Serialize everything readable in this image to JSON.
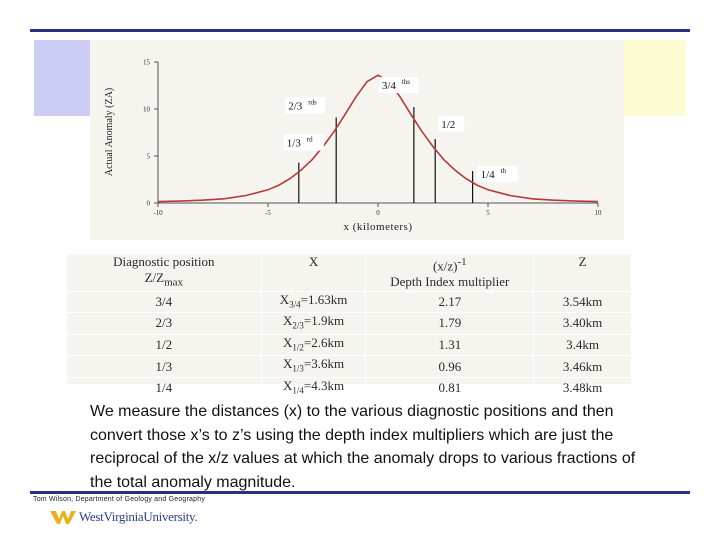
{
  "chart_data": {
    "type": "line",
    "xlabel": "x (kilometers)",
    "ylabel": "Actual Anomaly (ZA)",
    "x_ticks": [
      "-10",
      "-5",
      "0",
      "5",
      "10"
    ],
    "y_ticks": [
      "0",
      "5",
      "10",
      "15"
    ],
    "xlim": [
      -10,
      10
    ],
    "ylim": [
      0,
      15
    ],
    "curve": {
      "x": [
        -10,
        -9,
        -8,
        -7,
        -6,
        -5,
        -4.5,
        -4,
        -3.5,
        -3,
        -2.5,
        -2,
        -1.5,
        -1,
        -0.5,
        0,
        0.5,
        1,
        1.5,
        2,
        2.5,
        3,
        3.5,
        4,
        4.5,
        5,
        6,
        7,
        8,
        9,
        10
      ],
      "y": [
        0.15,
        0.2,
        0.3,
        0.45,
        0.8,
        1.4,
        1.9,
        2.6,
        3.5,
        4.6,
        6.0,
        7.6,
        9.4,
        11.3,
        12.9,
        13.6,
        12.9,
        11.3,
        9.4,
        7.6,
        6.0,
        4.6,
        3.5,
        2.6,
        1.9,
        1.4,
        0.8,
        0.45,
        0.3,
        0.2,
        0.15
      ]
    },
    "markers": [
      {
        "x": -3.6,
        "y": 4.3,
        "label_base": "1/3",
        "label_sup": "rd"
      },
      {
        "x": -1.9,
        "y": 9.1,
        "label_base": "2/3",
        "label_sup": "rds"
      },
      {
        "x": 1.63,
        "y": 10.2,
        "label_base": "3/4",
        "label_sup": "ths"
      },
      {
        "x": 2.6,
        "y": 6.8,
        "label_base": "1/2",
        "label_sup": ""
      },
      {
        "x": 4.3,
        "y": 3.4,
        "label_base": "1/4",
        "label_sup": "th"
      }
    ],
    "grid": false
  },
  "table": {
    "header": {
      "col1": "Diagnostic position",
      "col1_sub_base": "Z/Z",
      "col1_sub_sub": "max",
      "col2": "X",
      "col3_base": "(x/z)",
      "col3_sup": "-1",
      "col3_sub": "Depth Index multiplier",
      "col4": "Z"
    },
    "rows": [
      {
        "pos": "3/4",
        "x_base": "X",
        "x_sub": "3/4",
        "x_val": "=1.63km",
        "mult": "2.17",
        "z": "3.54km"
      },
      {
        "pos": "2/3",
        "x_base": "X",
        "x_sub": "2/3",
        "x_val": "=1.9km",
        "mult": "1.79",
        "z": "3.40km"
      },
      {
        "pos": "1/2",
        "x_base": "X",
        "x_sub": "1/2",
        "x_val": "=2.6km",
        "mult": "1.31",
        "z": "3.4km"
      },
      {
        "pos": "1/3",
        "x_base": "X",
        "x_sub": "1/3",
        "x_val": "=3.6km",
        "mult": "0.96",
        "z": "3.46km"
      },
      {
        "pos": "1/4",
        "x_base": "X",
        "x_sub": "1/4",
        "x_val": "=4.3km",
        "mult": "0.81",
        "z": "3.48km"
      }
    ]
  },
  "description": "We measure the distances (x) to the various diagnostic positions and then convert those x’s to z’s using the depth index multipliers which are just the reciprocal of the x/z values at which the anomaly drops to various fractions of the total anomaly magnitude.",
  "footer": {
    "credit": "Tom Wilson, Department of Geology and Geography",
    "logo_text": "WestVirginiaUniversity.",
    "logo_icon": "wv-flying-wv-icon"
  },
  "colors": {
    "rule": "#2b2f80",
    "band_blue": "#ccccf5",
    "band_yellow": "#fdfbd2",
    "curve": "#b53a3a"
  }
}
